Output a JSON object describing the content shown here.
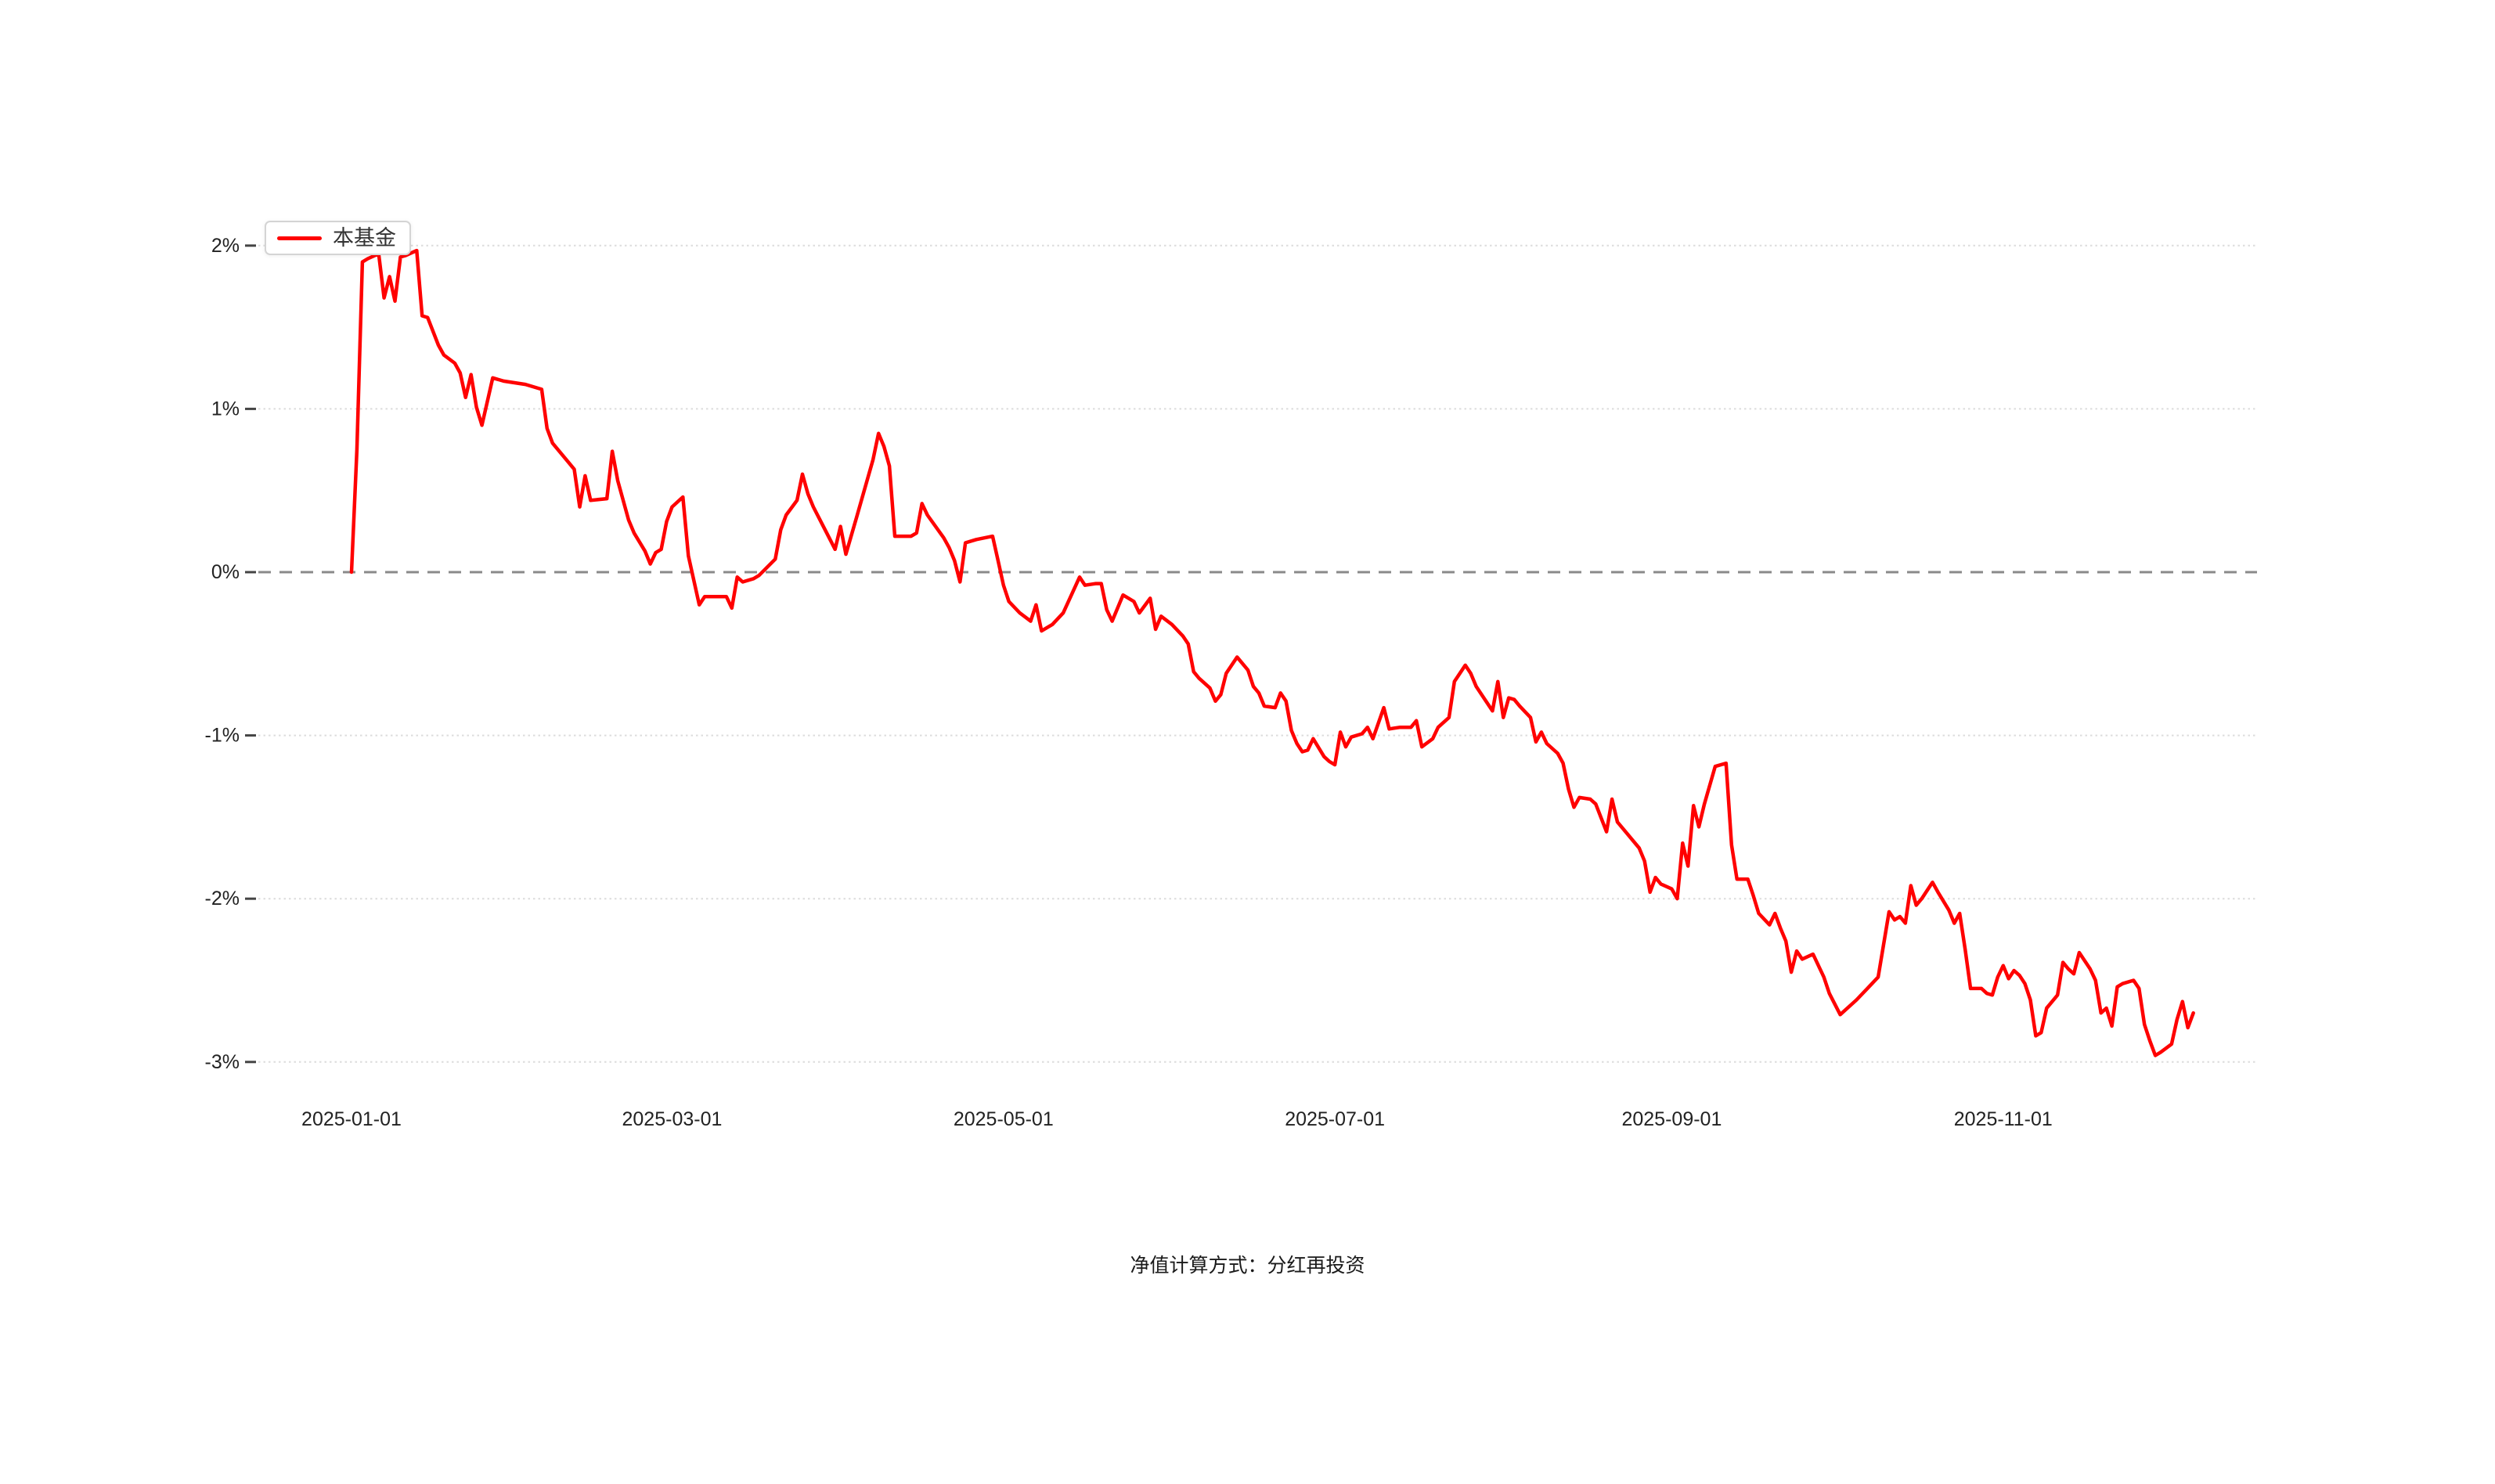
{
  "legend": {
    "label": "本基金",
    "line_color": "#ff0000"
  },
  "caption": "净值计算方式：分红再投资",
  "chart_data": {
    "type": "line",
    "title": "",
    "xlabel": "",
    "ylabel": "",
    "x_unit": "days_since_2025-01-01",
    "y_unit": "percent",
    "ylim": [
      -3.3,
      2.3
    ],
    "grid": "horizontal-dotted",
    "zero_line": "dashed-gray",
    "legend_position": "top-left",
    "x_ticks": [
      {
        "day": 0,
        "label": "2025-01-01"
      },
      {
        "day": 59,
        "label": "2025-03-01"
      },
      {
        "day": 120,
        "label": "2025-05-01"
      },
      {
        "day": 181,
        "label": "2025-07-01"
      },
      {
        "day": 243,
        "label": "2025-09-01"
      },
      {
        "day": 304,
        "label": "2025-11-01"
      }
    ],
    "y_ticks": [
      {
        "value": 2,
        "label": "2%"
      },
      {
        "value": 1,
        "label": "1%"
      },
      {
        "value": 0,
        "label": "0%"
      },
      {
        "value": -1,
        "label": "-1%"
      },
      {
        "value": -2,
        "label": "-2%"
      },
      {
        "value": -3,
        "label": "-3%"
      }
    ],
    "series": [
      {
        "name": "本基金",
        "color": "#ff0000",
        "points": [
          [
            0,
            0.0
          ],
          [
            1,
            0.75
          ],
          [
            2,
            1.9
          ],
          [
            3,
            1.92
          ],
          [
            5,
            1.95
          ],
          [
            6,
            1.68
          ],
          [
            7,
            1.81
          ],
          [
            8,
            1.66
          ],
          [
            9,
            1.93
          ],
          [
            10,
            1.94
          ],
          [
            12,
            1.97
          ],
          [
            13,
            1.57
          ],
          [
            14,
            1.56
          ],
          [
            16,
            1.39
          ],
          [
            17,
            1.33
          ],
          [
            19,
            1.28
          ],
          [
            20,
            1.22
          ],
          [
            21,
            1.07
          ],
          [
            22,
            1.21
          ],
          [
            23,
            1.01
          ],
          [
            24,
            0.9
          ],
          [
            26,
            1.19
          ],
          [
            28,
            1.17
          ],
          [
            32,
            1.15
          ],
          [
            35,
            1.12
          ],
          [
            36,
            0.88
          ],
          [
            37,
            0.79
          ],
          [
            40,
            0.67
          ],
          [
            41,
            0.63
          ],
          [
            42,
            0.4
          ],
          [
            43,
            0.59
          ],
          [
            44,
            0.44
          ],
          [
            47,
            0.45
          ],
          [
            48,
            0.74
          ],
          [
            49,
            0.56
          ],
          [
            51,
            0.32
          ],
          [
            52,
            0.24
          ],
          [
            54,
            0.13
          ],
          [
            55,
            0.05
          ],
          [
            56,
            0.12
          ],
          [
            57,
            0.14
          ],
          [
            58,
            0.31
          ],
          [
            59,
            0.4
          ],
          [
            61,
            0.46
          ],
          [
            62,
            0.1
          ],
          [
            64,
            -0.2
          ],
          [
            65,
            -0.15
          ],
          [
            69,
            -0.15
          ],
          [
            70,
            -0.22
          ],
          [
            71,
            -0.03
          ],
          [
            72,
            -0.06
          ],
          [
            74,
            -0.04
          ],
          [
            75,
            -0.02
          ],
          [
            78,
            0.08
          ],
          [
            79,
            0.26
          ],
          [
            80,
            0.35
          ],
          [
            82,
            0.44
          ],
          [
            83,
            0.6
          ],
          [
            84,
            0.48
          ],
          [
            85,
            0.4
          ],
          [
            87,
            0.27
          ],
          [
            89,
            0.14
          ],
          [
            90,
            0.28
          ],
          [
            91,
            0.11
          ],
          [
            93,
            0.34
          ],
          [
            96,
            0.69
          ],
          [
            97,
            0.85
          ],
          [
            98,
            0.77
          ],
          [
            99,
            0.65
          ],
          [
            100,
            0.22
          ],
          [
            103,
            0.22
          ],
          [
            104,
            0.24
          ],
          [
            105,
            0.42
          ],
          [
            106,
            0.35
          ],
          [
            109,
            0.21
          ],
          [
            110,
            0.15
          ],
          [
            111,
            0.07
          ],
          [
            112,
            -0.06
          ],
          [
            113,
            0.18
          ],
          [
            115,
            0.2
          ],
          [
            118,
            0.22
          ],
          [
            119,
            0.07
          ],
          [
            120,
            -0.08
          ],
          [
            121,
            -0.18
          ],
          [
            123,
            -0.25
          ],
          [
            125,
            -0.3
          ],
          [
            126,
            -0.2
          ],
          [
            127,
            -0.36
          ],
          [
            129,
            -0.32
          ],
          [
            131,
            -0.25
          ],
          [
            134,
            -0.03
          ],
          [
            135,
            -0.08
          ],
          [
            137,
            -0.07
          ],
          [
            138,
            -0.07
          ],
          [
            139,
            -0.23
          ],
          [
            140,
            -0.3
          ],
          [
            142,
            -0.14
          ],
          [
            144,
            -0.18
          ],
          [
            145,
            -0.25
          ],
          [
            147,
            -0.16
          ],
          [
            148,
            -0.35
          ],
          [
            149,
            -0.27
          ],
          [
            151,
            -0.32
          ],
          [
            153,
            -0.39
          ],
          [
            154,
            -0.44
          ],
          [
            155,
            -0.61
          ],
          [
            156,
            -0.65
          ],
          [
            158,
            -0.71
          ],
          [
            159,
            -0.79
          ],
          [
            160,
            -0.75
          ],
          [
            161,
            -0.62
          ],
          [
            163,
            -0.52
          ],
          [
            165,
            -0.6
          ],
          [
            166,
            -0.7
          ],
          [
            167,
            -0.74
          ],
          [
            168,
            -0.82
          ],
          [
            170,
            -0.83
          ],
          [
            171,
            -0.74
          ],
          [
            172,
            -0.79
          ],
          [
            173,
            -0.97
          ],
          [
            174,
            -1.05
          ],
          [
            175,
            -1.1
          ],
          [
            176,
            -1.09
          ],
          [
            177,
            -1.02
          ],
          [
            179,
            -1.13
          ],
          [
            180,
            -1.16
          ],
          [
            181,
            -1.18
          ],
          [
            182,
            -0.98
          ],
          [
            183,
            -1.07
          ],
          [
            184,
            -1.01
          ],
          [
            186,
            -0.99
          ],
          [
            187,
            -0.95
          ],
          [
            188,
            -1.02
          ],
          [
            190,
            -0.83
          ],
          [
            191,
            -0.96
          ],
          [
            193,
            -0.95
          ],
          [
            195,
            -0.95
          ],
          [
            196,
            -0.91
          ],
          [
            197,
            -1.07
          ],
          [
            199,
            -1.02
          ],
          [
            200,
            -0.95
          ],
          [
            202,
            -0.89
          ],
          [
            203,
            -0.67
          ],
          [
            205,
            -0.57
          ],
          [
            206,
            -0.62
          ],
          [
            207,
            -0.7
          ],
          [
            209,
            -0.8
          ],
          [
            210,
            -0.85
          ],
          [
            211,
            -0.67
          ],
          [
            212,
            -0.89
          ],
          [
            213,
            -0.77
          ],
          [
            214,
            -0.78
          ],
          [
            215,
            -0.82
          ],
          [
            217,
            -0.89
          ],
          [
            218,
            -1.04
          ],
          [
            219,
            -0.98
          ],
          [
            220,
            -1.05
          ],
          [
            222,
            -1.11
          ],
          [
            223,
            -1.17
          ],
          [
            224,
            -1.33
          ],
          [
            225,
            -1.44
          ],
          [
            226,
            -1.38
          ],
          [
            228,
            -1.39
          ],
          [
            229,
            -1.42
          ],
          [
            231,
            -1.59
          ],
          [
            232,
            -1.39
          ],
          [
            233,
            -1.53
          ],
          [
            235,
            -1.61
          ],
          [
            237,
            -1.69
          ],
          [
            238,
            -1.77
          ],
          [
            239,
            -1.96
          ],
          [
            240,
            -1.87
          ],
          [
            241,
            -1.91
          ],
          [
            243,
            -1.94
          ],
          [
            244,
            -2.0
          ],
          [
            245,
            -1.66
          ],
          [
            246,
            -1.8
          ],
          [
            247,
            -1.43
          ],
          [
            248,
            -1.56
          ],
          [
            249,
            -1.42
          ],
          [
            251,
            -1.19
          ],
          [
            253,
            -1.17
          ],
          [
            254,
            -1.67
          ],
          [
            255,
            -1.88
          ],
          [
            257,
            -1.88
          ],
          [
            258,
            -1.98
          ],
          [
            259,
            -2.09
          ],
          [
            261,
            -2.16
          ],
          [
            262,
            -2.09
          ],
          [
            263,
            -2.18
          ],
          [
            264,
            -2.26
          ],
          [
            265,
            -2.45
          ],
          [
            266,
            -2.32
          ],
          [
            267,
            -2.37
          ],
          [
            269,
            -2.34
          ],
          [
            271,
            -2.48
          ],
          [
            272,
            -2.58
          ],
          [
            274,
            -2.71
          ],
          [
            277,
            -2.62
          ],
          [
            279,
            -2.55
          ],
          [
            281,
            -2.48
          ],
          [
            283,
            -2.08
          ],
          [
            284,
            -2.13
          ],
          [
            285,
            -2.11
          ],
          [
            286,
            -2.15
          ],
          [
            287,
            -1.92
          ],
          [
            288,
            -2.04
          ],
          [
            289,
            -2.0
          ],
          [
            291,
            -1.9
          ],
          [
            292,
            -1.96
          ],
          [
            294,
            -2.07
          ],
          [
            295,
            -2.15
          ],
          [
            296,
            -2.09
          ],
          [
            297,
            -2.31
          ],
          [
            298,
            -2.55
          ],
          [
            300,
            -2.55
          ],
          [
            301,
            -2.58
          ],
          [
            302,
            -2.59
          ],
          [
            303,
            -2.48
          ],
          [
            304,
            -2.41
          ],
          [
            305,
            -2.49
          ],
          [
            306,
            -2.44
          ],
          [
            307,
            -2.47
          ],
          [
            308,
            -2.52
          ],
          [
            309,
            -2.62
          ],
          [
            310,
            -2.84
          ],
          [
            311,
            -2.82
          ],
          [
            312,
            -2.67
          ],
          [
            314,
            -2.59
          ],
          [
            315,
            -2.39
          ],
          [
            316,
            -2.43
          ],
          [
            317,
            -2.46
          ],
          [
            318,
            -2.33
          ],
          [
            320,
            -2.43
          ],
          [
            321,
            -2.5
          ],
          [
            322,
            -2.7
          ],
          [
            323,
            -2.67
          ],
          [
            324,
            -2.78
          ],
          [
            325,
            -2.54
          ],
          [
            326,
            -2.52
          ],
          [
            328,
            -2.5
          ],
          [
            329,
            -2.55
          ],
          [
            330,
            -2.77
          ],
          [
            331,
            -2.87
          ],
          [
            332,
            -2.96
          ],
          [
            333,
            -2.94
          ],
          [
            335,
            -2.89
          ],
          [
            336,
            -2.74
          ],
          [
            337,
            -2.63
          ],
          [
            338,
            -2.79
          ],
          [
            339,
            -2.7
          ]
        ]
      }
    ]
  }
}
